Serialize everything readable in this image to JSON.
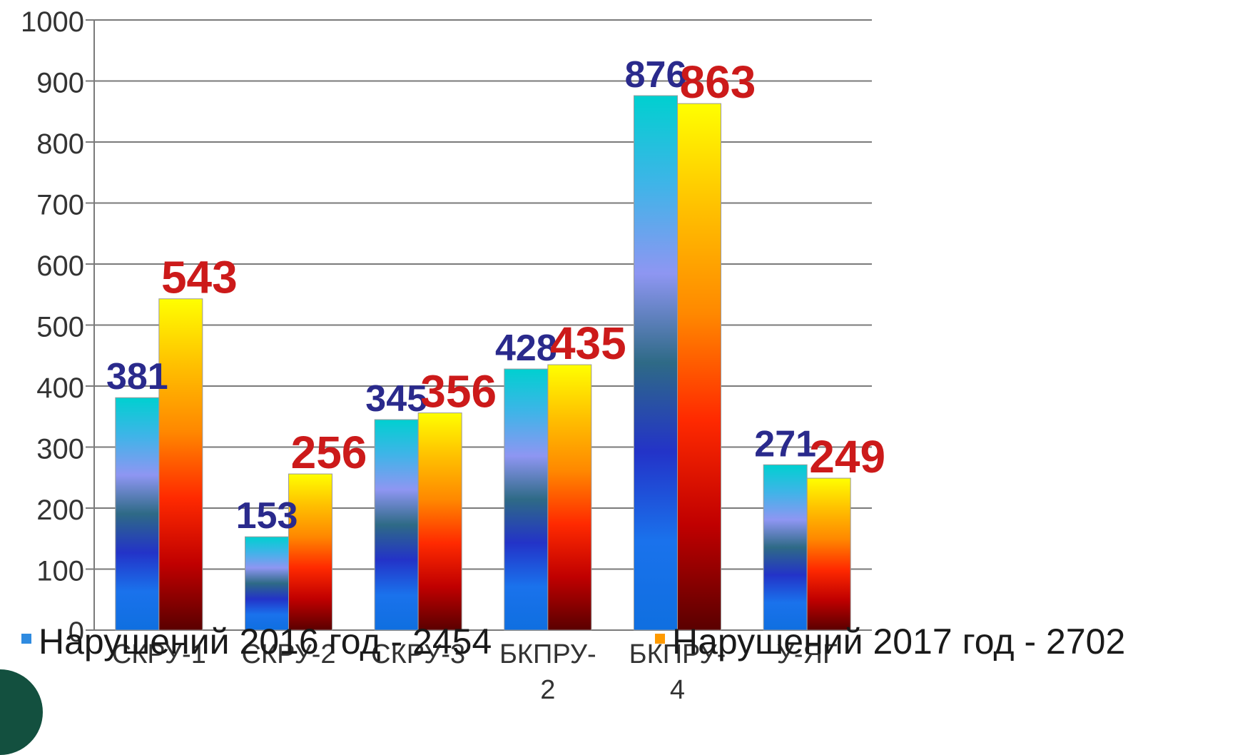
{
  "chart_data": {
    "type": "bar",
    "categories": [
      [
        "СКРУ-1"
      ],
      [
        "СКРУ-2"
      ],
      [
        "СКРУ-3"
      ],
      [
        "БКПРУ-",
        "2"
      ],
      [
        "БКПРУ-",
        "4"
      ],
      [
        "У-ЯГ"
      ]
    ],
    "series": [
      {
        "name": "Нарушений 2016 год - 2454",
        "values": [
          381,
          153,
          345,
          428,
          876,
          271
        ],
        "label_color": "#2a2a8c",
        "legend_color": "#2f8be0",
        "gradient": [
          "#00d0d0",
          "#3fb4e8",
          "#8e96f2",
          "#2e6a86",
          "#2333c8",
          "#1a72ec",
          "#0f6fe0"
        ]
      },
      {
        "name": "Нарушений 2017 год - 2702",
        "values": [
          543,
          256,
          356,
          435,
          863,
          249
        ],
        "label_color": "#cc1a1a",
        "legend_color": "#ff9a00",
        "gradient": [
          "#ffff00",
          "#ffc000",
          "#ff8800",
          "#ff2a00",
          "#c00000",
          "#5a0000"
        ]
      }
    ],
    "ylim": [
      0,
      1000
    ],
    "yticks": [
      0,
      100,
      200,
      300,
      400,
      500,
      600,
      700,
      800,
      900,
      1000
    ],
    "grid": true,
    "legend_position": "bottom",
    "title": "",
    "xlabel": "",
    "ylabel": ""
  }
}
